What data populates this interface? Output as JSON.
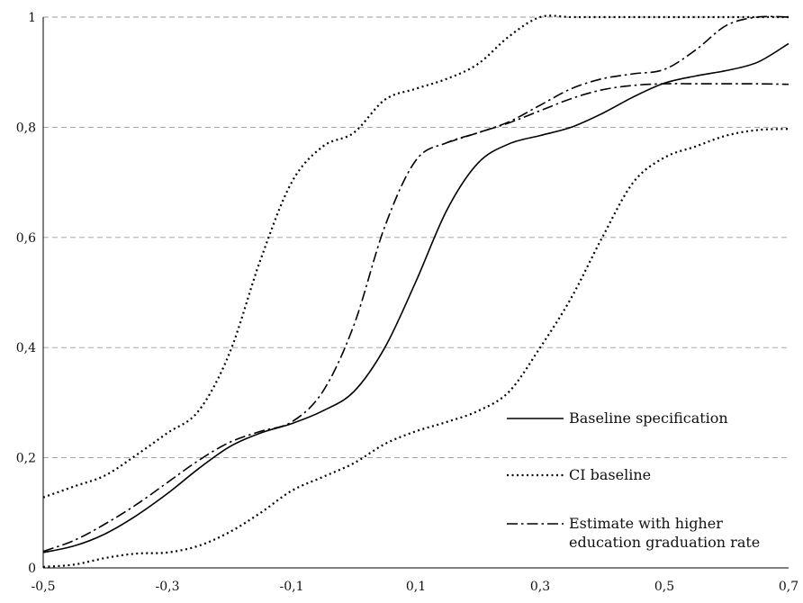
{
  "chart_data": {
    "type": "line",
    "title": "",
    "xlabel": "",
    "ylabel": "",
    "xlim": [
      -0.5,
      0.7
    ],
    "ylim": [
      0,
      1
    ],
    "x_ticks": [
      "-0,5",
      "-0,3",
      "-0,1",
      "0,1",
      "0,3",
      "0,5",
      "0,7"
    ],
    "x_tick_values": [
      -0.5,
      -0.3,
      -0.1,
      0.1,
      0.3,
      0.5,
      0.7
    ],
    "y_ticks": [
      "0",
      "0,2",
      "0,4",
      "0,6",
      "0,8",
      "1"
    ],
    "y_tick_values": [
      0,
      0.2,
      0.4,
      0.6,
      0.8,
      1
    ],
    "grid": "horizontal dashed",
    "legend_position": "bottom-right",
    "series": [
      {
        "name": "Baseline specification",
        "style": "solid",
        "color": "#000000",
        "points": [
          [
            -0.5,
            0.028
          ],
          [
            -0.45,
            0.04
          ],
          [
            -0.4,
            0.062
          ],
          [
            -0.35,
            0.095
          ],
          [
            -0.3,
            0.135
          ],
          [
            -0.25,
            0.18
          ],
          [
            -0.2,
            0.22
          ],
          [
            -0.15,
            0.245
          ],
          [
            -0.1,
            0.262
          ],
          [
            -0.05,
            0.285
          ],
          [
            0.0,
            0.32
          ],
          [
            0.05,
            0.4
          ],
          [
            0.1,
            0.52
          ],
          [
            0.15,
            0.65
          ],
          [
            0.2,
            0.735
          ],
          [
            0.25,
            0.77
          ],
          [
            0.3,
            0.785
          ],
          [
            0.35,
            0.8
          ],
          [
            0.4,
            0.825
          ],
          [
            0.45,
            0.855
          ],
          [
            0.5,
            0.88
          ],
          [
            0.55,
            0.893
          ],
          [
            0.6,
            0.903
          ],
          [
            0.65,
            0.918
          ],
          [
            0.7,
            0.952
          ]
        ]
      },
      {
        "name": "CI baseline",
        "style": "dotted",
        "color": "#000000",
        "points": [
          [
            -0.5,
            0.128
          ],
          [
            -0.45,
            0.148
          ],
          [
            -0.4,
            0.168
          ],
          [
            -0.35,
            0.205
          ],
          [
            -0.3,
            0.245
          ],
          [
            -0.25,
            0.285
          ],
          [
            -0.2,
            0.39
          ],
          [
            -0.15,
            0.56
          ],
          [
            -0.1,
            0.7
          ],
          [
            -0.05,
            0.765
          ],
          [
            0.0,
            0.79
          ],
          [
            0.05,
            0.85
          ],
          [
            0.1,
            0.87
          ],
          [
            0.15,
            0.888
          ],
          [
            0.2,
            0.915
          ],
          [
            0.25,
            0.965
          ],
          [
            0.3,
            1.0
          ],
          [
            0.35,
            1.0
          ],
          [
            0.4,
            1.0
          ],
          [
            0.5,
            1.0
          ],
          [
            0.6,
            1.0
          ],
          [
            0.7,
            1.0
          ]
        ]
      },
      {
        "name": "",
        "style": "dotted",
        "color": "#000000",
        "points": [
          [
            -0.5,
            0.002
          ],
          [
            -0.45,
            0.006
          ],
          [
            -0.4,
            0.018
          ],
          [
            -0.35,
            0.026
          ],
          [
            -0.3,
            0.028
          ],
          [
            -0.25,
            0.04
          ],
          [
            -0.2,
            0.065
          ],
          [
            -0.15,
            0.1
          ],
          [
            -0.1,
            0.14
          ],
          [
            -0.05,
            0.165
          ],
          [
            0.0,
            0.19
          ],
          [
            0.05,
            0.225
          ],
          [
            0.1,
            0.248
          ],
          [
            0.15,
            0.265
          ],
          [
            0.2,
            0.285
          ],
          [
            0.25,
            0.32
          ],
          [
            0.3,
            0.4
          ],
          [
            0.35,
            0.49
          ],
          [
            0.4,
            0.6
          ],
          [
            0.45,
            0.7
          ],
          [
            0.5,
            0.745
          ],
          [
            0.55,
            0.765
          ],
          [
            0.6,
            0.785
          ],
          [
            0.65,
            0.795
          ],
          [
            0.7,
            0.797
          ]
        ]
      },
      {
        "name": "Estimate with higher education graduation rate",
        "style": "dash-dot",
        "color": "#000000",
        "points": [
          [
            -0.5,
            0.03
          ],
          [
            -0.45,
            0.05
          ],
          [
            -0.4,
            0.08
          ],
          [
            -0.35,
            0.115
          ],
          [
            -0.3,
            0.155
          ],
          [
            -0.25,
            0.195
          ],
          [
            -0.2,
            0.228
          ],
          [
            -0.15,
            0.248
          ],
          [
            -0.1,
            0.265
          ],
          [
            -0.05,
            0.32
          ],
          [
            0.0,
            0.44
          ],
          [
            0.05,
            0.62
          ],
          [
            0.1,
            0.74
          ],
          [
            0.15,
            0.772
          ],
          [
            0.2,
            0.79
          ],
          [
            0.25,
            0.81
          ],
          [
            0.3,
            0.84
          ],
          [
            0.35,
            0.87
          ],
          [
            0.4,
            0.888
          ],
          [
            0.45,
            0.897
          ],
          [
            0.5,
            0.905
          ],
          [
            0.55,
            0.94
          ],
          [
            0.6,
            0.985
          ],
          [
            0.65,
            1.0
          ],
          [
            0.7,
            1.0
          ]
        ]
      },
      {
        "name": "",
        "style": "dash-dot",
        "color": "#000000",
        "points": [
          [
            0.15,
            0.772
          ],
          [
            0.2,
            0.79
          ],
          [
            0.25,
            0.808
          ],
          [
            0.3,
            0.83
          ],
          [
            0.35,
            0.852
          ],
          [
            0.4,
            0.868
          ],
          [
            0.45,
            0.876
          ],
          [
            0.5,
            0.879
          ],
          [
            0.55,
            0.879
          ],
          [
            0.6,
            0.879
          ],
          [
            0.65,
            0.879
          ],
          [
            0.7,
            0.878
          ]
        ]
      }
    ],
    "legend": [
      {
        "label": "Baseline specification",
        "style": "solid"
      },
      {
        "label": "CI baseline",
        "style": "dotted"
      },
      {
        "label_lines": [
          "Estimate with higher",
          "education graduation rate"
        ],
        "style": "dash-dot"
      }
    ]
  }
}
